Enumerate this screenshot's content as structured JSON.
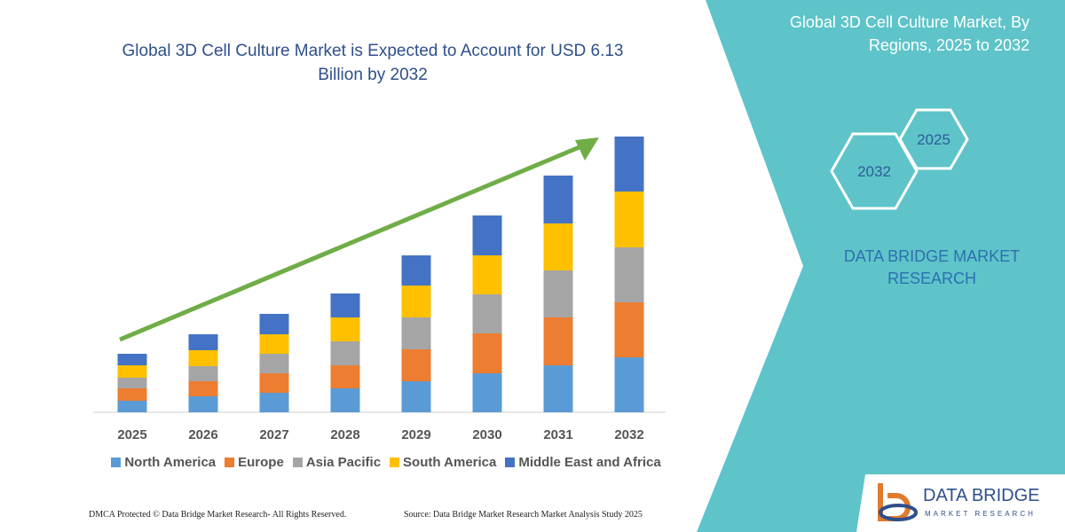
{
  "chart_data": {
    "type": "bar",
    "stacked": true,
    "title": "Global 3D Cell Culture Market is Expected to Account for USD 6.13 Billion by 2032",
    "categories": [
      "2025",
      "2026",
      "2027",
      "2028",
      "2029",
      "2030",
      "2031",
      "2032"
    ],
    "series": [
      {
        "name": "North America",
        "color": "#5b9bd5",
        "values": [
          13,
          18,
          22,
          27,
          35,
          44,
          53,
          62
        ]
      },
      {
        "name": "Europe",
        "color": "#ed7d31",
        "values": [
          14,
          17,
          22,
          26,
          36,
          45,
          54,
          62
        ]
      },
      {
        "name": "Asia Pacific",
        "color": "#a5a5a5",
        "values": [
          12,
          17,
          22,
          27,
          36,
          44,
          53,
          62
        ]
      },
      {
        "name": "South America",
        "color": "#ffc000",
        "values": [
          14,
          18,
          22,
          27,
          36,
          44,
          53,
          63
        ]
      },
      {
        "name": "Middle East and Africa",
        "color": "#4472c4",
        "values": [
          13,
          18,
          23,
          27,
          34,
          45,
          54,
          62
        ]
      }
    ]
  },
  "panel": {
    "title": "Global 3D Cell Culture Market, By Regions, 2025 to 2032",
    "hexagons": [
      "2025",
      "2032"
    ],
    "brand": "DATA BRIDGE MARKET RESEARCH"
  },
  "logo": {
    "name": "DATA BRIDGE",
    "tagline": "MARKET RESEARCH"
  },
  "footer": {
    "left": "DMCA Protected © Data Bridge Market Research- All Rights Reserved.",
    "right": "Source: Data Bridge Market Research  Market Analysis Study 2025"
  }
}
